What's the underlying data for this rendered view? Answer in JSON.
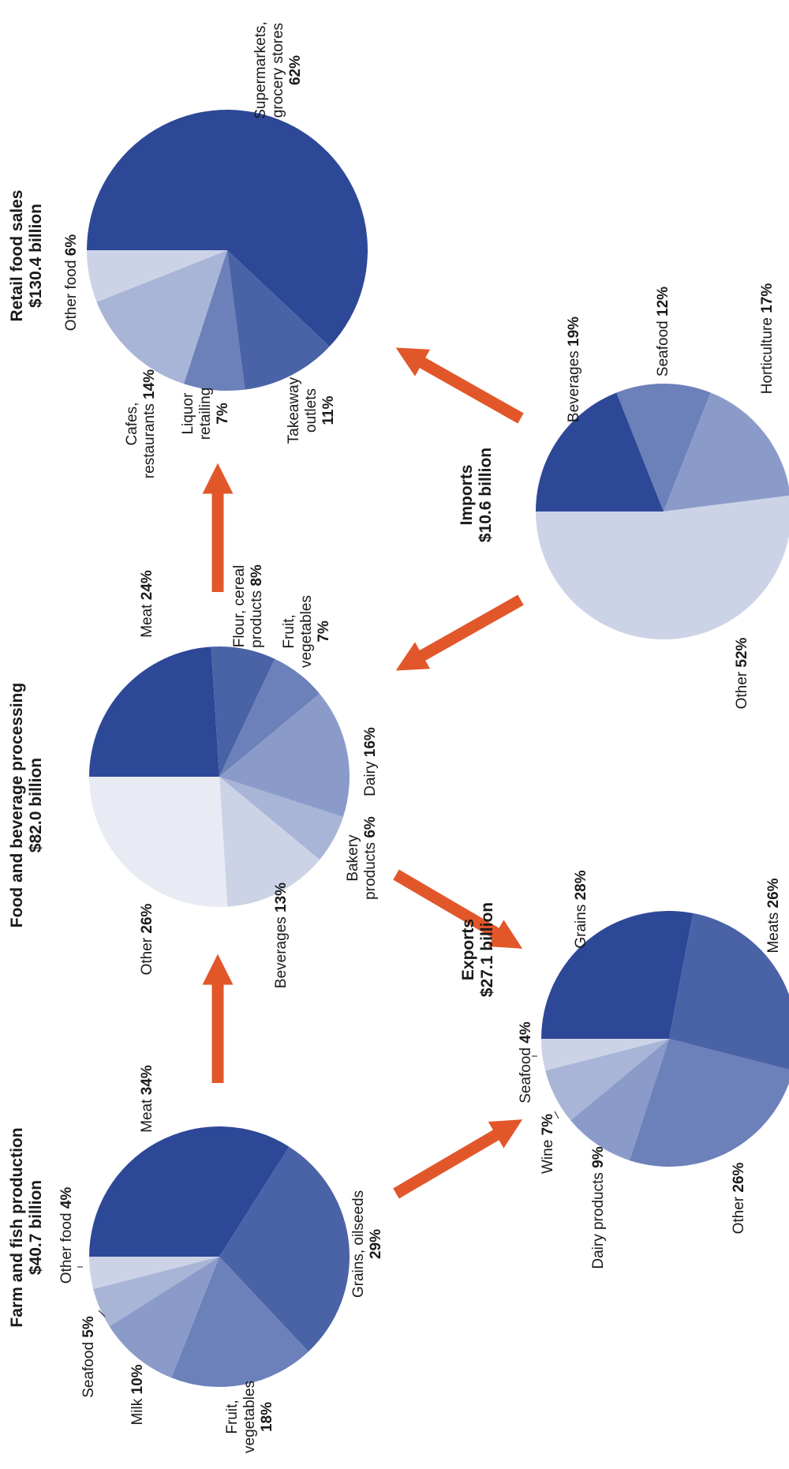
{
  "colors": {
    "arrow": "#e2572a",
    "pie": [
      "#2e4898",
      "#4a63a7",
      "#6c80b9",
      "#8b9bc9",
      "#a9b5d7",
      "#ccd3e6",
      "#e8ebf4"
    ]
  },
  "chart_data": [
    {
      "type": "pie",
      "id": "farm",
      "title": "Farm and fish production",
      "subtitle": "$40.7 billion",
      "slices": [
        {
          "label": "Meat",
          "value": 34,
          "pct": "34%"
        },
        {
          "label": "Grains, oilseeds",
          "value": 29,
          "pct": "29%"
        },
        {
          "label": "Fruit, vegetables",
          "value": 18,
          "pct": "18%"
        },
        {
          "label": "Milk",
          "value": 10,
          "pct": "10%"
        },
        {
          "label": "Seafood",
          "value": 5,
          "pct": "5%"
        },
        {
          "label": "Other food",
          "value": 4,
          "pct": "4%"
        }
      ]
    },
    {
      "type": "pie",
      "id": "processing",
      "title": "Food and beverage processing",
      "subtitle": "$82.0 billion",
      "slices": [
        {
          "label": "Meat",
          "value": 24,
          "pct": "24%"
        },
        {
          "label": "Flour, cereal products",
          "value": 8,
          "pct": "8%"
        },
        {
          "label": "Fruit, vegetables",
          "value": 7,
          "pct": "7%"
        },
        {
          "label": "Dairy",
          "value": 16,
          "pct": "16%"
        },
        {
          "label": "Bakery products",
          "value": 6,
          "pct": "6%"
        },
        {
          "label": "Beverages",
          "value": 13,
          "pct": "13%"
        },
        {
          "label": "Other",
          "value": 26,
          "pct": "26%"
        }
      ]
    },
    {
      "type": "pie",
      "id": "retail",
      "title": "Retail food sales",
      "subtitle": "$130.4 billion",
      "slices": [
        {
          "label": "Supermarkets, grocery stores",
          "value": 62,
          "pct": "62%"
        },
        {
          "label": "Takeaway outlets",
          "value": 11,
          "pct": "11%"
        },
        {
          "label": "Liquor retailing",
          "value": 7,
          "pct": "7%"
        },
        {
          "label": "Cafes, restaurants",
          "value": 14,
          "pct": "14%"
        },
        {
          "label": "Other food",
          "value": 6,
          "pct": "6%"
        }
      ]
    },
    {
      "type": "pie",
      "id": "exports",
      "title": "Exports",
      "subtitle": "$27.1 billion",
      "slices": [
        {
          "label": "Grains",
          "value": 28,
          "pct": "28%"
        },
        {
          "label": "Meats",
          "value": 26,
          "pct": "26%"
        },
        {
          "label": "Other",
          "value": 26,
          "pct": "26%"
        },
        {
          "label": "Dairy products",
          "value": 9,
          "pct": "9%"
        },
        {
          "label": "Wine",
          "value": 7,
          "pct": "7%"
        },
        {
          "label": "Seafood",
          "value": 4,
          "pct": "4%"
        }
      ]
    },
    {
      "type": "pie",
      "id": "imports",
      "title": "Imports",
      "subtitle": "$10.6 billion",
      "slices": [
        {
          "label": "Beverages",
          "value": 19,
          "pct": "19%"
        },
        {
          "label": "Seafood",
          "value": 12,
          "pct": "12%"
        },
        {
          "label": "Horticulture",
          "value": 17,
          "pct": "17%"
        },
        {
          "label": "Other",
          "value": 52,
          "pct": "52%"
        }
      ]
    }
  ]
}
